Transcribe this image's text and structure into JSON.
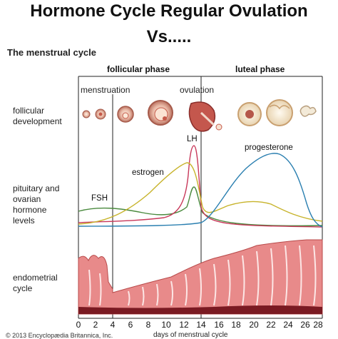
{
  "header": {
    "title_line1": "Hormone Cycle Regular Ovulation",
    "title_line2": "Vs....."
  },
  "figure": {
    "heading": "The menstrual cycle",
    "phases": {
      "follicular": "follicular phase",
      "luteal": "luteal phase"
    },
    "events": {
      "menstruation": "menstruation",
      "ovulation": "ovulation"
    },
    "row_labels": {
      "follicular_development": [
        "follicular",
        "development"
      ],
      "hormone_levels": [
        "pituitary and",
        "ovarian",
        "hormone",
        "levels"
      ],
      "endometrial_cycle": [
        "endometrial",
        "cycle"
      ]
    },
    "hormones": {
      "fsh": "FSH",
      "lh": "LH",
      "estrogen": "estrogen",
      "progesterone": "progesterone"
    },
    "colors": {
      "fsh": "#4a8a3e",
      "lh": "#c8385a",
      "estrogen": "#c7b32a",
      "progesterone": "#2a7fb0",
      "endometrium": "#e88a8a",
      "endometrium_dark": "#7a1a22"
    },
    "x_axis": {
      "ticks": [
        "0",
        "2",
        "4",
        "6",
        "8",
        "10",
        "12",
        "14",
        "16",
        "18",
        "20",
        "22",
        "24",
        "26",
        "28"
      ],
      "caption": "days of menstrual cycle"
    },
    "copyright": "© 2013 Encyclopædia Britannica, Inc."
  }
}
